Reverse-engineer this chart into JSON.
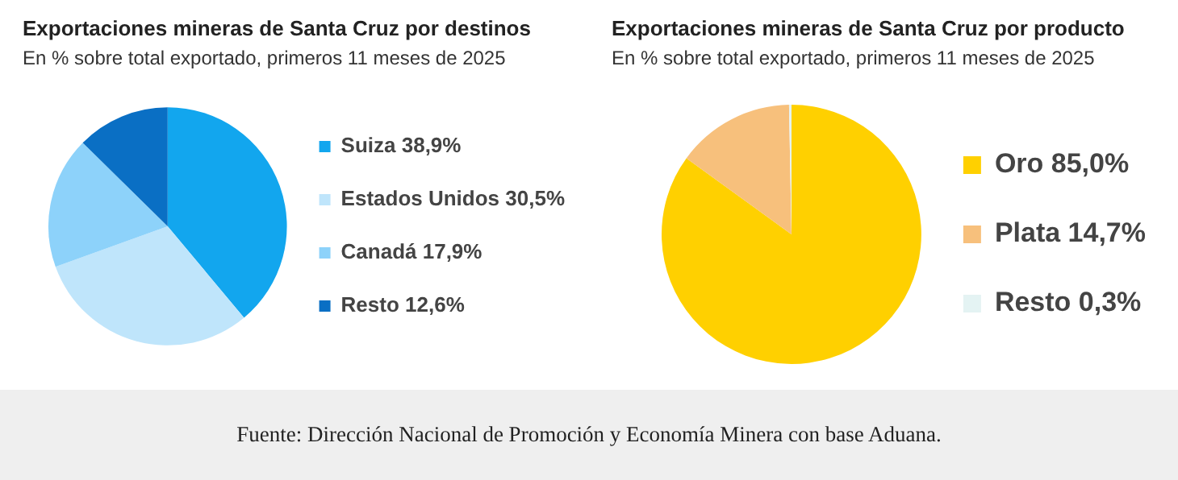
{
  "chart_data": [
    {
      "type": "pie",
      "title": "Exportaciones mineras de Santa Cruz por destinos",
      "subtitle": "En % sobre total exportado, primeros 11 meses de 2025",
      "categories": [
        "Suiza",
        "Estados Unidos",
        "Canadá",
        "Resto"
      ],
      "values": [
        38.9,
        30.5,
        17.9,
        12.6
      ],
      "colors": [
        "#12a6ee",
        "#bfe5fb",
        "#8dd2fa",
        "#0a6fc4"
      ],
      "value_labels": [
        "38,9%",
        "30,5%",
        "17,9%",
        "12,6%"
      ],
      "legend": "right",
      "annotations": [
        "Fuente: Dirección Nacional de Promoción y Economía Minera con base Aduana."
      ]
    },
    {
      "type": "pie",
      "title": "Exportaciones mineras de Santa Cruz por producto",
      "subtitle": "En % sobre total exportado, primeros 11 meses de 2025",
      "categories": [
        "Oro",
        "Plata",
        "Resto"
      ],
      "values": [
        85.0,
        14.7,
        0.3
      ],
      "colors": [
        "#ffd000",
        "#f7c07c",
        "#e4f3f3"
      ],
      "value_labels": [
        "85,0%",
        "14,7%",
        "0,3%"
      ],
      "legend": "right"
    }
  ]
}
